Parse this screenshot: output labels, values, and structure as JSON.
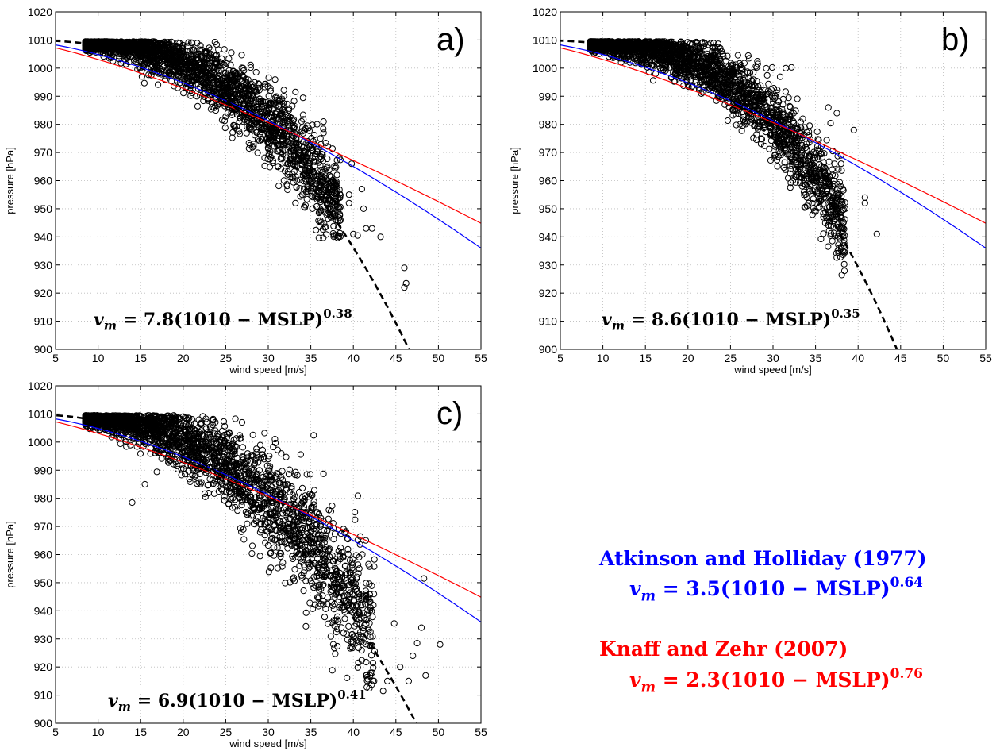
{
  "chart_data": [
    {
      "type": "scatter",
      "panel_label": "a)",
      "xlabel": "wind speed [m/s]",
      "ylabel": "pressure [hPa]",
      "xlim": [
        5,
        55
      ],
      "ylim": [
        900,
        1020
      ],
      "xticks": [
        5,
        10,
        15,
        20,
        25,
        30,
        35,
        40,
        45,
        50,
        55
      ],
      "yticks": [
        900,
        910,
        920,
        930,
        940,
        950,
        960,
        970,
        980,
        990,
        1000,
        1010,
        1020
      ],
      "grid": "dotted",
      "fit": {
        "coef": 7.8,
        "exponent": 0.38,
        "equation_base": "v",
        "equation_sub": "m",
        "equation_body": " = 7.8(1010 − MSLP)",
        "equation_exp": "0.38"
      },
      "scatter_cloud": {
        "description_free": true,
        "x_range": [
          8,
          46
        ],
        "y_range": [
          922,
          1010
        ],
        "outliers": [
          [
            36.5,
            981
          ],
          [
            36.5,
            977
          ],
          [
            38,
            959
          ],
          [
            39.8,
            966
          ],
          [
            39.5,
            955
          ],
          [
            39.5,
            952
          ],
          [
            40,
            941
          ],
          [
            40.5,
            940.5
          ],
          [
            41.5,
            943
          ],
          [
            41,
            957
          ],
          [
            41.2,
            950
          ],
          [
            42.2,
            943
          ],
          [
            43.2,
            940
          ],
          [
            46,
            929
          ],
          [
            46,
            922
          ],
          [
            46.2,
            923.5
          ],
          [
            37.5,
            956
          ],
          [
            36,
            958
          ],
          [
            35,
            963
          ],
          [
            34,
            955
          ],
          [
            35.2,
            950
          ]
        ]
      }
    },
    {
      "type": "scatter",
      "panel_label": "b)",
      "xlabel": "wind speed [m/s]",
      "ylabel": "pressure [hPa]",
      "xlim": [
        5,
        55
      ],
      "ylim": [
        900,
        1020
      ],
      "xticks": [
        5,
        10,
        15,
        20,
        25,
        30,
        35,
        40,
        45,
        50,
        55
      ],
      "yticks": [
        900,
        910,
        920,
        930,
        940,
        950,
        960,
        970,
        980,
        990,
        1000,
        1010,
        1020
      ],
      "grid": "dotted",
      "fit": {
        "coef": 8.6,
        "exponent": 0.35,
        "equation_base": "v",
        "equation_sub": "m",
        "equation_body": " = 8.6(1010 − MSLP)",
        "equation_exp": "0.35"
      },
      "scatter_cloud": {
        "x_range": [
          8,
          43
        ],
        "y_range": [
          941,
          1010
        ],
        "outliers": [
          [
            39.5,
            978
          ],
          [
            40.8,
            954
          ],
          [
            40.8,
            952
          ],
          [
            42.2,
            941
          ],
          [
            36.5,
            986
          ],
          [
            37.5,
            984
          ],
          [
            38,
            969
          ],
          [
            36,
            954
          ],
          [
            37.2,
            951
          ],
          [
            34,
            951
          ],
          [
            35,
            949
          ],
          [
            36.2,
            960
          ],
          [
            37,
            962
          ],
          [
            38,
            966
          ],
          [
            33.5,
            982
          ],
          [
            34.2,
            976
          ],
          [
            31.5,
            1000
          ]
        ]
      }
    },
    {
      "type": "scatter",
      "panel_label": "c)",
      "xlabel": "wind speed [m/s]",
      "ylabel": "pressure [hPa]",
      "xlim": [
        5,
        55
      ],
      "ylim": [
        900,
        1020
      ],
      "xticks": [
        5,
        10,
        15,
        20,
        25,
        30,
        35,
        40,
        45,
        50,
        55
      ],
      "yticks": [
        900,
        910,
        920,
        930,
        940,
        950,
        960,
        970,
        980,
        990,
        1000,
        1010,
        1020
      ],
      "grid": "dotted",
      "fit": {
        "coef": 6.9,
        "exponent": 0.41,
        "equation_base": "v",
        "equation_sub": "m",
        "equation_body": " = 6.9(1010 − MSLP)",
        "equation_exp": "0.41"
      },
      "scatter_cloud": {
        "x_range": [
          8,
          50
        ],
        "y_range": [
          910,
          1010
        ],
        "outliers": [
          [
            50.2,
            928
          ],
          [
            48.3,
            951.5
          ],
          [
            48.5,
            917
          ],
          [
            47.5,
            928.5
          ],
          [
            48,
            934
          ],
          [
            47,
            924
          ],
          [
            46.5,
            915
          ],
          [
            44.8,
            935.5
          ],
          [
            45.5,
            920
          ],
          [
            44,
            915
          ],
          [
            43.5,
            911.5
          ],
          [
            42.2,
            918
          ],
          [
            41.5,
            917
          ],
          [
            30,
            994
          ],
          [
            31,
            987
          ],
          [
            14,
            978.5
          ],
          [
            15.5,
            985
          ]
        ]
      }
    }
  ],
  "reference_curves": [
    {
      "name": "Atkinson and Holliday (1977)",
      "coef": 3.5,
      "exponent": 0.64,
      "color": "#0000ff",
      "equation_body": " = 3.5(1010 − MSLP)",
      "equation_exp": "0.64"
    },
    {
      "name": "Knaff and Zehr (2007)",
      "coef": 2.3,
      "exponent": 0.76,
      "color": "#ff0000",
      "equation_body": " = 2.3(1010 − MSLP)",
      "equation_exp": "0.76"
    }
  ],
  "colors": {
    "points": "#000000",
    "fit": "#000000",
    "blue": "#0000ff",
    "red": "#ff0000",
    "grid": "#bbbbbb"
  }
}
